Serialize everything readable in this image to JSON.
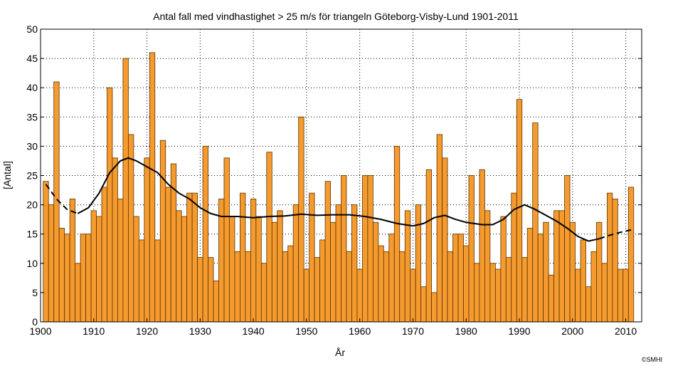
{
  "chart_data": {
    "type": "bar",
    "title": "Antal fall med vindhastighet > 25 m/s för triangeln Göteborg-Visby-Lund 1901-2011",
    "xlabel": "År",
    "ylabel": "[Antal]",
    "xlim": [
      1900,
      2013
    ],
    "ylim": [
      0,
      50
    ],
    "x_ticks": [
      1900,
      1910,
      1920,
      1930,
      1940,
      1950,
      1960,
      1970,
      1980,
      1990,
      2000,
      2010
    ],
    "y_ticks": [
      0,
      5,
      10,
      15,
      20,
      25,
      30,
      35,
      40,
      45,
      50
    ],
    "grid": true,
    "bar_color": "#F59A2F",
    "years": [
      1901,
      1902,
      1903,
      1904,
      1905,
      1906,
      1907,
      1908,
      1909,
      1910,
      1911,
      1912,
      1913,
      1914,
      1915,
      1916,
      1917,
      1918,
      1919,
      1920,
      1921,
      1922,
      1923,
      1924,
      1925,
      1926,
      1927,
      1928,
      1929,
      1930,
      1931,
      1932,
      1933,
      1934,
      1935,
      1936,
      1937,
      1938,
      1939,
      1940,
      1941,
      1942,
      1943,
      1944,
      1945,
      1946,
      1947,
      1948,
      1949,
      1950,
      1951,
      1952,
      1953,
      1954,
      1955,
      1956,
      1957,
      1958,
      1959,
      1960,
      1961,
      1962,
      1963,
      1964,
      1965,
      1966,
      1967,
      1968,
      1969,
      1970,
      1971,
      1972,
      1973,
      1974,
      1975,
      1976,
      1977,
      1978,
      1979,
      1980,
      1981,
      1982,
      1983,
      1984,
      1985,
      1986,
      1987,
      1988,
      1989,
      1990,
      1991,
      1992,
      1993,
      1994,
      1995,
      1996,
      1997,
      1998,
      1999,
      2000,
      2001,
      2002,
      2003,
      2004,
      2005,
      2006,
      2007,
      2008,
      2009,
      2010,
      2011
    ],
    "values": [
      24,
      20,
      41,
      16,
      15,
      21,
      10,
      15,
      15,
      19,
      18,
      23,
      40,
      28,
      21,
      45,
      32,
      18,
      14,
      28,
      46,
      14,
      31,
      23,
      27,
      19,
      18,
      22,
      22,
      11,
      30,
      11,
      7,
      21,
      28,
      18,
      12,
      22,
      12,
      21,
      18,
      10,
      29,
      17,
      19,
      12,
      13,
      20,
      35,
      9,
      22,
      11,
      14,
      24,
      17,
      20,
      25,
      12,
      20,
      9,
      25,
      25,
      17,
      13,
      12,
      15,
      30,
      12,
      19,
      9,
      20,
      6,
      26,
      5,
      32,
      28,
      12,
      15,
      15,
      13,
      25,
      10,
      26,
      19,
      10,
      9,
      18,
      11,
      22,
      38,
      11,
      16,
      34,
      15,
      17,
      8,
      19,
      19,
      25,
      17,
      9,
      14,
      6,
      12,
      17,
      10,
      22,
      21,
      9,
      9,
      23
    ],
    "smoothed": {
      "name": "",
      "color": "#000000",
      "points": [
        [
          1901,
          23.5
        ],
        [
          1903,
          21
        ],
        [
          1905,
          19.2
        ],
        [
          1907,
          18.5
        ],
        [
          1909,
          19.5
        ],
        [
          1911,
          22
        ],
        [
          1913,
          25.5
        ],
        [
          1915,
          27.5
        ],
        [
          1916.5,
          28
        ],
        [
          1918,
          27.5
        ],
        [
          1920,
          26.5
        ],
        [
          1922,
          25.5
        ],
        [
          1924,
          23.5
        ],
        [
          1926,
          22
        ],
        [
          1928,
          21
        ],
        [
          1930,
          19.5
        ],
        [
          1932,
          18.5
        ],
        [
          1934,
          18
        ],
        [
          1937,
          18
        ],
        [
          1940,
          17.8
        ],
        [
          1943,
          18
        ],
        [
          1946,
          18.1
        ],
        [
          1949,
          18.4
        ],
        [
          1952,
          18.2
        ],
        [
          1955,
          18.3
        ],
        [
          1958,
          18.3
        ],
        [
          1961,
          18
        ],
        [
          1964,
          17.5
        ],
        [
          1967,
          16.8
        ],
        [
          1970,
          16.4
        ],
        [
          1972,
          16.8
        ],
        [
          1974,
          17.8
        ],
        [
          1976,
          18.2
        ],
        [
          1978,
          17.5
        ],
        [
          1980,
          17
        ],
        [
          1983,
          16.6
        ],
        [
          1985,
          16.6
        ],
        [
          1987,
          17.5
        ],
        [
          1989,
          19.2
        ],
        [
          1991,
          20
        ],
        [
          1993,
          19.2
        ],
        [
          1995,
          18.2
        ],
        [
          1997,
          17.2
        ],
        [
          1999,
          16
        ],
        [
          2001,
          14.6
        ],
        [
          2003,
          13.8
        ],
        [
          2005,
          14.2
        ],
        [
          2007,
          14.8
        ],
        [
          2009,
          15.3
        ],
        [
          2011,
          15.7
        ]
      ],
      "dashed_before": 1907,
      "dashed_after": 2005
    },
    "credit": "©SMHI"
  }
}
